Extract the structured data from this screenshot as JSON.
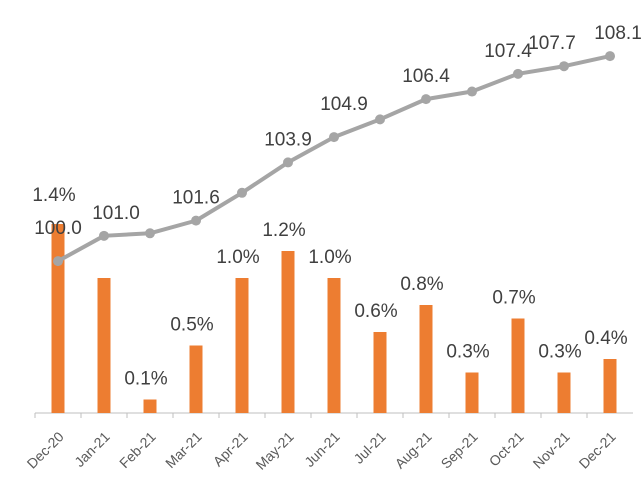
{
  "chart_data": {
    "type": "bar-line",
    "categories": [
      "Dec-20",
      "Jan-21",
      "Feb-21",
      "Mar-21",
      "Apr-21",
      "May-21",
      "Jun-21",
      "Jul-21",
      "Aug-21",
      "Sep-21",
      "Oct-21",
      "Nov-21",
      "Dec-21"
    ],
    "series": [
      {
        "type": "bar",
        "color": "#ed7d31",
        "values": [
          1.4,
          1.0,
          0.1,
          0.5,
          1.0,
          1.2,
          1.0,
          0.6,
          0.8,
          0.3,
          0.7,
          0.3,
          0.4
        ],
        "value_labels": [
          "1.4%",
          null,
          "0.1%",
          "0.5%",
          "1.0%",
          "1.2%",
          "1.0%",
          "0.6%",
          "0.8%",
          "0.3%",
          "0.7%",
          "0.3%",
          "0.4%"
        ]
      },
      {
        "type": "line",
        "axis": "y2",
        "color": "#a5a5a5",
        "values": [
          100.0,
          101.0,
          101.1,
          101.6,
          102.7,
          103.9,
          104.9,
          105.6,
          106.4,
          106.7,
          107.4,
          107.7,
          108.1
        ],
        "value_labels": [
          "100.0",
          "101.0",
          null,
          "101.6",
          null,
          "103.9",
          "104.9",
          null,
          "106.4",
          null,
          "107.4",
          "107.7",
          "108.1"
        ]
      }
    ],
    "ylim": [
      0,
      3
    ],
    "y2lim": [
      94,
      110
    ]
  }
}
